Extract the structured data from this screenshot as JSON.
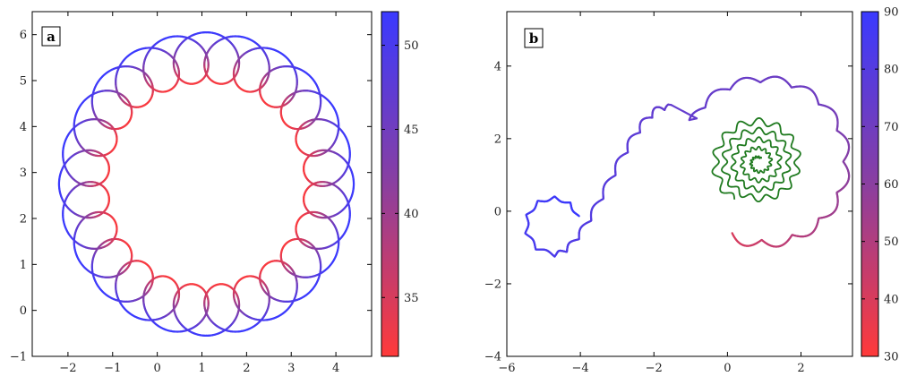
{
  "colors": {
    "colormap_low": "#ff3a3a",
    "colormap_mid": "#8a3fa0",
    "colormap_high": "#3a3aff",
    "green_curve": "#1f7a1f",
    "axes": "#000000"
  },
  "chart_data": [
    {
      "type": "line",
      "panel_label": "a",
      "description_kind": "parametric trajectory colored by value",
      "xlim": [
        -2.8,
        4.8
      ],
      "ylim": [
        -1,
        6.5
      ],
      "xticks": [
        -2,
        -1,
        0,
        1,
        2,
        3,
        4
      ],
      "yticks": [
        -1,
        0,
        1,
        2,
        3,
        4,
        5,
        6
      ],
      "xtick_labels": [
        "−2",
        "−1",
        "0",
        "1",
        "2",
        "3",
        "4"
      ],
      "ytick_labels": [
        "−1",
        "0",
        "1",
        "2",
        "3",
        "4",
        "5",
        "6"
      ],
      "curve": {
        "center": [
          1.1,
          2.75
        ],
        "guiding_radius": 2.75,
        "loop_radius": 0.55,
        "loop_count": 24,
        "color_range": [
          32,
          52
        ]
      },
      "colorbar": {
        "min": 31.5,
        "max": 52,
        "ticks": [
          35,
          40,
          45,
          50
        ],
        "tick_labels": [
          "35",
          "40",
          "45",
          "50"
        ]
      }
    },
    {
      "type": "line",
      "panel_label": "b",
      "description_kind": "parametric trajectory colored by value plus green spiral",
      "xlim": [
        -6,
        3.4
      ],
      "ylim": [
        -4,
        5.5
      ],
      "xticks": [
        -6,
        -4,
        -2,
        0,
        2
      ],
      "yticks": [
        -4,
        -2,
        0,
        2,
        4
      ],
      "xtick_labels": [
        "−6",
        "−4",
        "−2",
        "0",
        "2"
      ],
      "ytick_labels": [
        "−4",
        "−2",
        "0",
        "2",
        "4"
      ],
      "colored_curve": {
        "start": [
          -4.2,
          -0.1
        ],
        "end": [
          0,
          0.1
        ],
        "color_range": [
          30,
          90
        ]
      },
      "green_curve": {
        "center": [
          0.85,
          1.35
        ],
        "start": [
          0,
          0.2
        ]
      },
      "colorbar": {
        "min": 30,
        "max": 90,
        "ticks": [
          30,
          40,
          50,
          60,
          70,
          80,
          90
        ],
        "tick_labels": [
          "30",
          "40",
          "50",
          "60",
          "70",
          "80",
          "90"
        ]
      }
    }
  ]
}
